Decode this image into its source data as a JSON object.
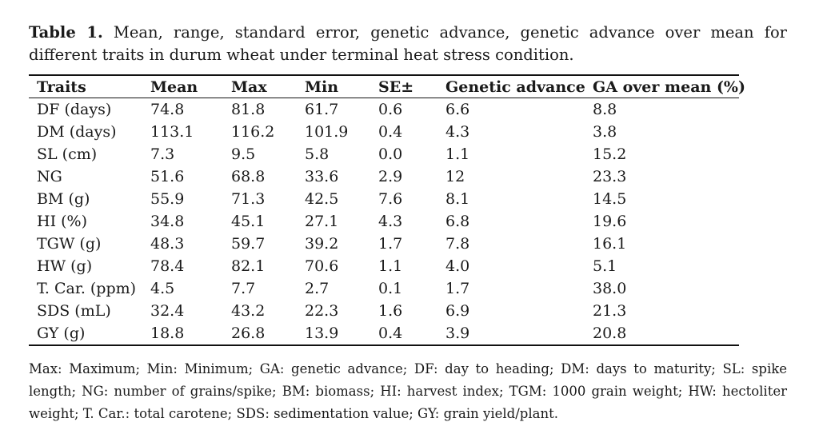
{
  "caption": {
    "label": "Table 1.",
    "text": "Mean, range, standard error, genetic advance, genetic advance over mean for different traits in durum wheat under terminal heat stress condition."
  },
  "table": {
    "headers": [
      "Traits",
      "Mean",
      "Max",
      "Min",
      "SE±",
      "Genetic advance",
      "GA over mean (%)"
    ],
    "rows": [
      [
        "DF (days)",
        "74.8",
        "81.8",
        "61.7",
        "0.6",
        "6.6",
        "8.8"
      ],
      [
        "DM (days)",
        "113.1",
        "116.2",
        "101.9",
        "0.4",
        "4.3",
        "3.8"
      ],
      [
        "SL (cm)",
        "7.3",
        "9.5",
        "5.8",
        "0.0",
        "1.1",
        "15.2"
      ],
      [
        "NG",
        "51.6",
        "68.8",
        "33.6",
        "2.9",
        "12",
        "23.3"
      ],
      [
        "BM (g)",
        "55.9",
        "71.3",
        "42.5",
        "7.6",
        "8.1",
        "14.5"
      ],
      [
        "HI (%)",
        "34.8",
        "45.1",
        "27.1",
        "4.3",
        "6.8",
        "19.6"
      ],
      [
        "TGW (g)",
        "48.3",
        "59.7",
        "39.2",
        "1.7",
        "7.8",
        "16.1"
      ],
      [
        "HW (g)",
        "78.4",
        "82.1",
        "70.6",
        "1.1",
        "4.0",
        "5.1"
      ],
      [
        "T. Car. (ppm)",
        "4.5",
        "7.7",
        "2.7",
        "0.1",
        "1.7",
        "38.0"
      ],
      [
        "SDS (mL)",
        "32.4",
        "43.2",
        "22.3",
        "1.6",
        "6.9",
        "21.3"
      ],
      [
        "GY (g)",
        "18.8",
        "26.8",
        "13.9",
        "0.4",
        "3.9",
        "20.8"
      ]
    ]
  },
  "footnote": "Max: Maximum; Min: Minimum; GA: genetic advance; DF: day to heading; DM: days to maturity; SL: spike length; NG: number of grains/spike; BM: biomass; HI: harvest index; TGM: 1000 grain weight; HW: hectoliter weight; T. Car.: total carotene; SDS: sedimentation value; GY: grain yield/plant."
}
